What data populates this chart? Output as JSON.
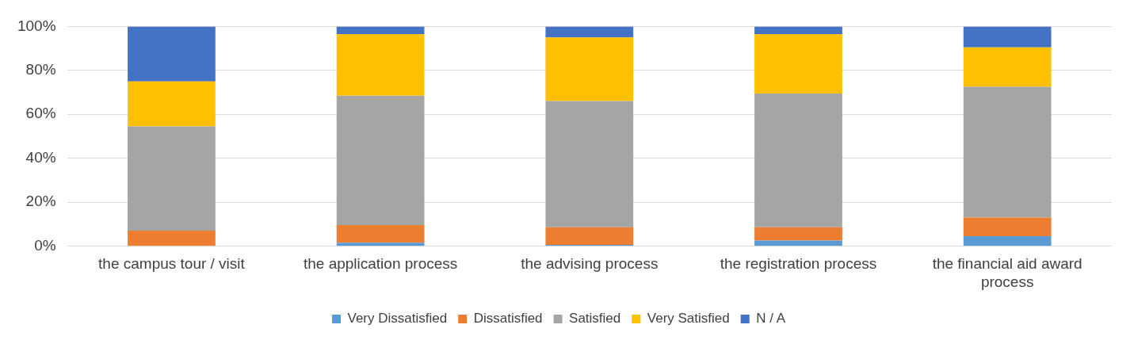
{
  "chart_data": {
    "type": "bar",
    "stacked": true,
    "categories": [
      "the campus tour / visit",
      "the application process",
      "the advising process",
      "the registration process",
      "the financial aid award process"
    ],
    "series": [
      {
        "name": "Very Dissatisfied",
        "color": "#5b9bd5",
        "values": [
          0,
          1.5,
          0.5,
          2.5,
          4.5
        ]
      },
      {
        "name": "Dissatisfied",
        "color": "#ed7d31",
        "values": [
          7,
          8,
          8,
          6,
          8.5
        ]
      },
      {
        "name": "Satisfied",
        "color": "#a5a5a5",
        "values": [
          47.5,
          59,
          57.5,
          61,
          59.5
        ]
      },
      {
        "name": "Very Satisfied",
        "color": "#ffc000",
        "values": [
          20.5,
          28,
          29,
          27,
          18
        ]
      },
      {
        "name": "N / A",
        "color": "#4472c4",
        "values": [
          25,
          3.5,
          5,
          3.5,
          9.5
        ]
      }
    ],
    "ylim": [
      0,
      100
    ],
    "yticks": [
      {
        "value": 0,
        "label": "0%"
      },
      {
        "value": 20,
        "label": "20%"
      },
      {
        "value": 40,
        "label": "40%"
      },
      {
        "value": 60,
        "label": "60%"
      },
      {
        "value": 80,
        "label": "80%"
      },
      {
        "value": 100,
        "label": "100%"
      }
    ],
    "grid": "y",
    "legend": "bottom"
  }
}
